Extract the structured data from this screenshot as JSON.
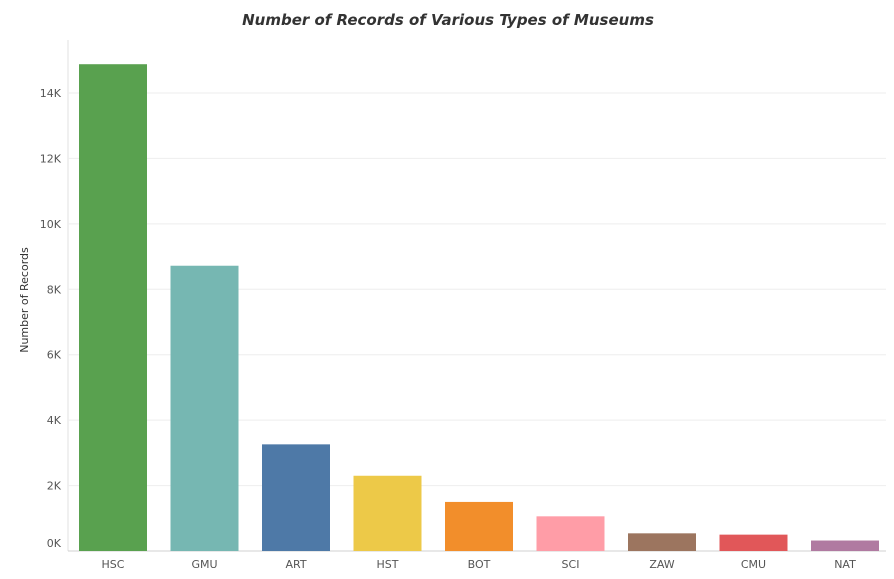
{
  "chart_data": {
    "type": "bar",
    "title": "Number of Records of Various Types of Museums",
    "xlabel": "",
    "ylabel": "Number of Records",
    "ylim": [
      0,
      15000
    ],
    "yticks": [
      0,
      2000,
      4000,
      6000,
      8000,
      10000,
      12000,
      14000
    ],
    "ytick_labels": [
      "0K",
      "2K",
      "4K",
      "6K",
      "8K",
      "10K",
      "12K",
      "14K"
    ],
    "grid": true,
    "legend": "none",
    "categories": [
      "HSC",
      "GMU",
      "ART",
      "HST",
      "BOT",
      "SCI",
      "ZAW",
      "CMU",
      "NAT"
    ],
    "values": [
      14880,
      8720,
      3260,
      2300,
      1500,
      1060,
      540,
      500,
      320
    ],
    "colors": [
      "#59A14F",
      "#76B7B2",
      "#4E79A7",
      "#EDC948",
      "#F28E2B",
      "#FF9DA7",
      "#9C755F",
      "#E15759",
      "#B07AA1"
    ]
  }
}
